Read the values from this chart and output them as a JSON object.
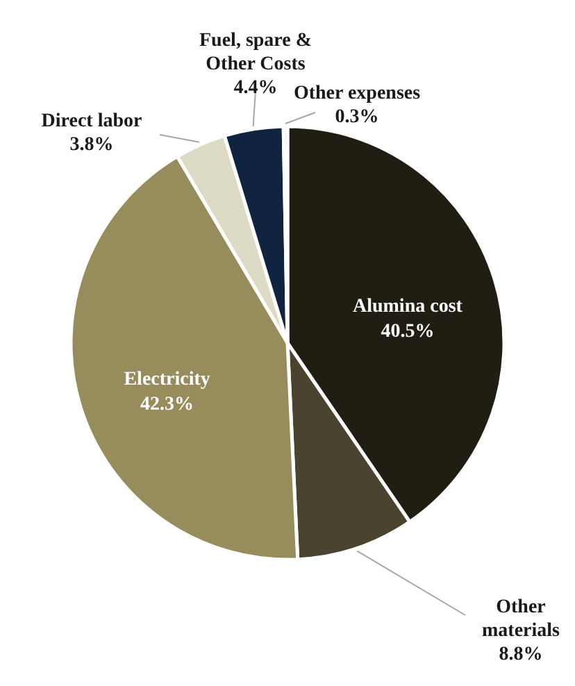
{
  "chart_data": {
    "type": "pie",
    "categories": [
      "Alumina cost",
      "Other materials",
      "Electricity",
      "Direct labor",
      "Fuel, spare & Other Costs",
      "Other expenses"
    ],
    "values": [
      40.5,
      8.8,
      42.3,
      3.8,
      4.4,
      0.3
    ],
    "value_labels": [
      "40.5%",
      "8.8%",
      "42.3%",
      "3.8%",
      "4.4%",
      "0.3%"
    ],
    "colors": [
      "#201d13",
      "#4a4330",
      "#978c5c",
      "#dddac6",
      "#10243f",
      "#e6e3d4"
    ]
  }
}
